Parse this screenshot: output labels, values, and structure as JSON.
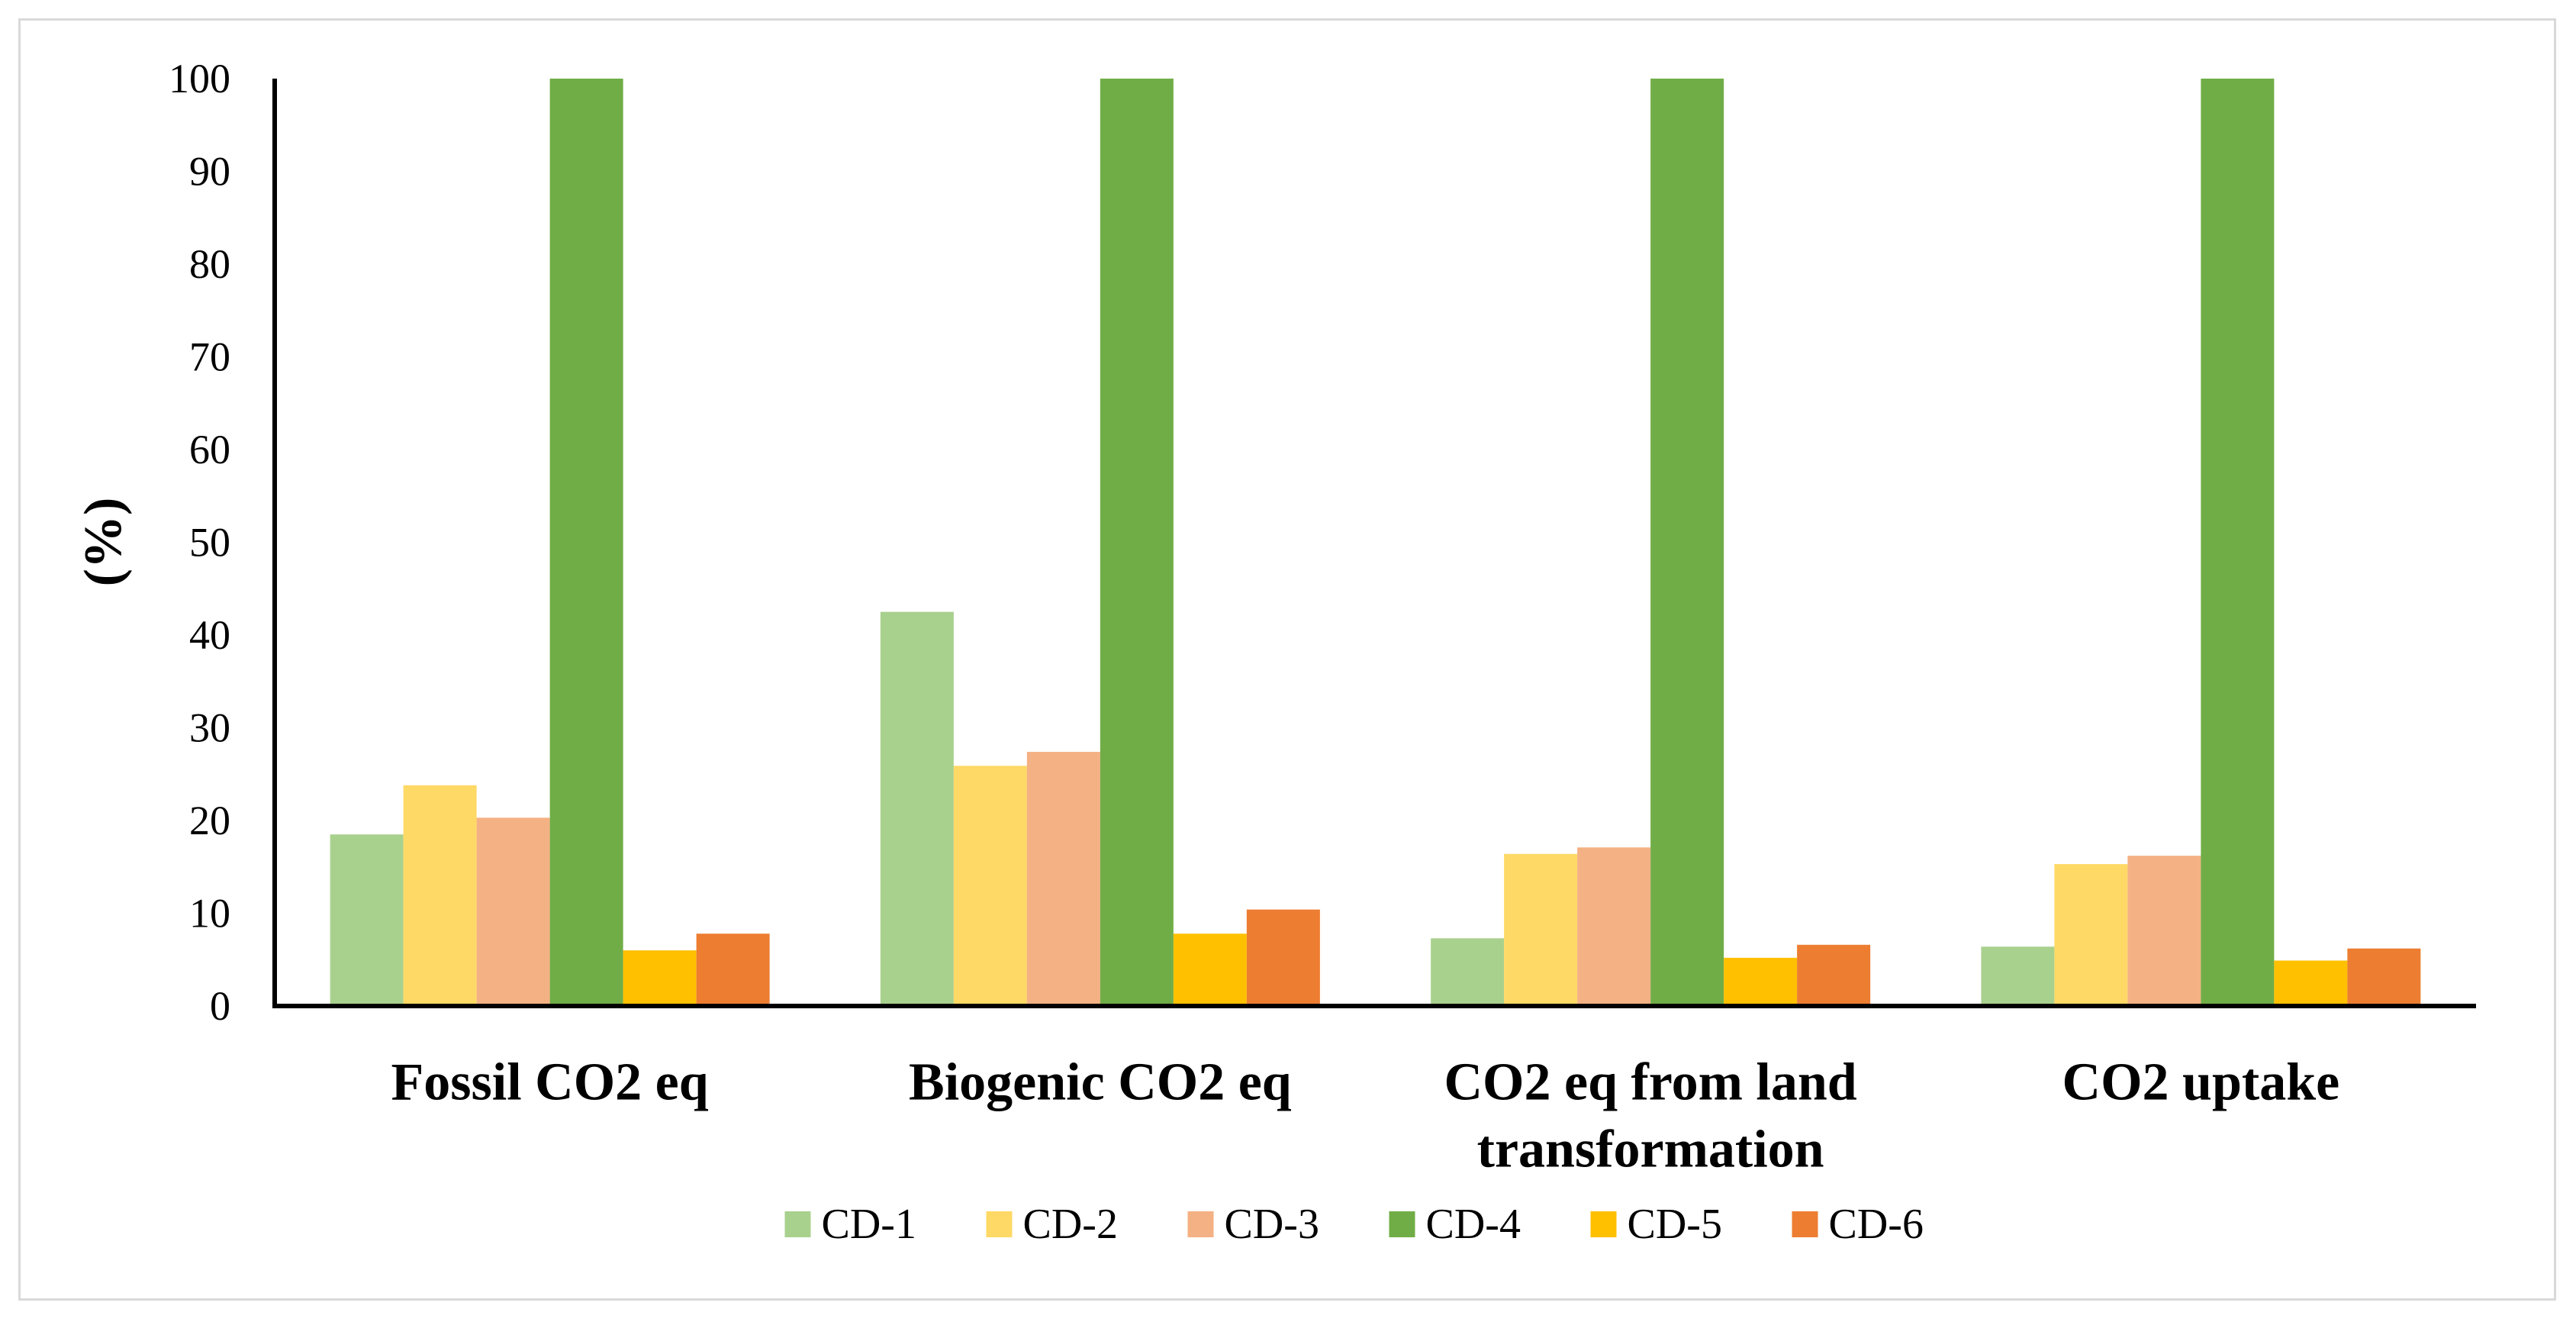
{
  "chart_data": {
    "type": "bar",
    "title": "",
    "xlabel": "",
    "ylabel": "(%)",
    "ylim": [
      0,
      100
    ],
    "yticks": [
      "0",
      "10",
      "20",
      "30",
      "40",
      "50",
      "60",
      "70",
      "80",
      "90",
      "100"
    ],
    "categories": [
      [
        "Fossil CO2 eq"
      ],
      [
        "Biogenic CO2 eq"
      ],
      [
        "CO2 eq from land",
        "transformation"
      ],
      [
        "CO2 uptake"
      ]
    ],
    "series": [
      {
        "name": "CD-1",
        "color": "#a9d18e",
        "values": [
          18.5,
          42.5,
          7.3,
          6.4
        ]
      },
      {
        "name": "CD-2",
        "color": "#ffd966",
        "values": [
          23.8,
          25.9,
          16.4,
          15.3
        ]
      },
      {
        "name": "CD-3",
        "color": "#f4b183",
        "values": [
          20.3,
          27.4,
          17.1,
          16.2
        ]
      },
      {
        "name": "CD-4",
        "color": "#70ad47",
        "values": [
          100,
          100,
          100,
          100
        ]
      },
      {
        "name": "CD-5",
        "color": "#ffc000",
        "values": [
          6.0,
          7.8,
          5.2,
          4.9
        ]
      },
      {
        "name": "CD-6",
        "color": "#ed7d31",
        "values": [
          7.8,
          10.4,
          6.6,
          6.2
        ]
      }
    ],
    "legend_position": "bottom",
    "grid": false
  }
}
